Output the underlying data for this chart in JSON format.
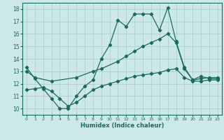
{
  "xlabel": "Humidex (Indice chaleur)",
  "background_color": "#cce8e8",
  "grid_color": "#aacccc",
  "line_color": "#1a6b5a",
  "xlim": [
    -0.5,
    23.5
  ],
  "ylim": [
    9.5,
    18.5
  ],
  "xticks": [
    0,
    1,
    2,
    3,
    4,
    5,
    6,
    7,
    8,
    9,
    10,
    11,
    12,
    13,
    14,
    15,
    16,
    17,
    18,
    19,
    20,
    21,
    22,
    23
  ],
  "yticks": [
    10,
    11,
    12,
    13,
    14,
    15,
    16,
    17,
    18
  ],
  "line1_x": [
    0,
    1,
    2,
    3,
    4,
    5,
    6,
    7,
    8,
    9,
    10,
    11,
    12,
    13,
    14,
    15,
    16,
    17,
    18,
    19,
    20,
    21,
    22,
    23
  ],
  "line1_y": [
    13.3,
    12.4,
    11.6,
    10.8,
    10.0,
    10.0,
    11.0,
    11.8,
    12.3,
    14.0,
    15.1,
    17.1,
    16.6,
    17.6,
    17.6,
    17.6,
    16.3,
    18.1,
    15.4,
    13.3,
    12.3,
    12.6,
    12.4,
    12.4
  ],
  "line2_x": [
    0,
    1,
    3,
    6,
    8,
    9,
    11,
    12,
    13,
    14,
    15,
    16,
    17,
    18,
    19,
    20,
    21,
    22,
    23
  ],
  "line2_y": [
    13.0,
    12.5,
    12.2,
    12.5,
    13.0,
    13.2,
    13.8,
    14.2,
    14.6,
    15.0,
    15.3,
    15.6,
    16.0,
    15.3,
    13.2,
    12.3,
    12.4,
    12.5,
    12.5
  ],
  "line3_x": [
    0,
    1,
    2,
    3,
    4,
    5,
    6,
    7,
    8,
    9,
    10,
    11,
    12,
    13,
    14,
    15,
    16,
    17,
    18,
    19,
    20,
    21,
    22,
    23
  ],
  "line3_y": [
    11.5,
    11.6,
    11.7,
    11.4,
    10.8,
    10.2,
    10.5,
    11.0,
    11.5,
    11.8,
    12.0,
    12.2,
    12.4,
    12.6,
    12.7,
    12.8,
    12.9,
    13.1,
    13.2,
    12.5,
    12.2,
    12.2,
    12.3,
    12.3
  ]
}
